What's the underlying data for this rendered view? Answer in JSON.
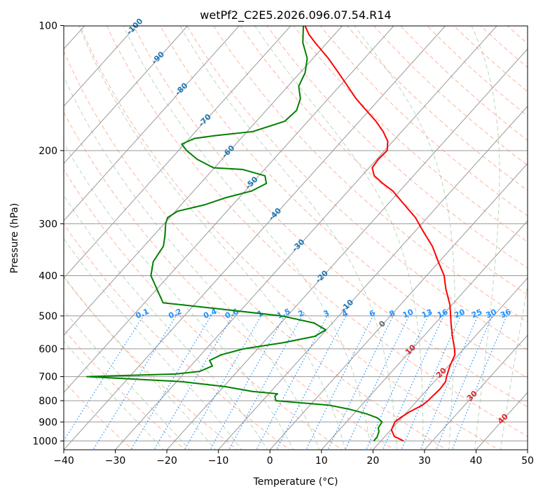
{
  "chart_data": {
    "type": "line",
    "subtype": "skew-T log-P diagram",
    "title": "wetPf2_C2E5.2026.096.07.54.R14",
    "xlabel": "Temperature (°C)",
    "ylabel": "Pressure (hPa)",
    "xlim": [
      -40,
      50
    ],
    "ylim": [
      1050,
      100
    ],
    "x_ticks": [
      -40,
      -30,
      -20,
      -10,
      0,
      10,
      20,
      30,
      40,
      50
    ],
    "y_ticks": [
      100,
      200,
      300,
      400,
      500,
      600,
      700,
      800,
      900,
      1000
    ],
    "grid": true,
    "series": [
      {
        "name": "Temperature",
        "color": "#ff0000",
        "points": [
          {
            "p": 1000,
            "t": 24.4
          },
          {
            "p": 975,
            "t": 21.8
          },
          {
            "p": 940,
            "t": 20.1
          },
          {
            "p": 900,
            "t": 19.4
          },
          {
            "p": 880,
            "t": 19.7
          },
          {
            "p": 850,
            "t": 20.5
          },
          {
            "p": 820,
            "t": 21.8
          },
          {
            "p": 800,
            "t": 22.1
          },
          {
            "p": 780,
            "t": 22.2
          },
          {
            "p": 750,
            "t": 22.4
          },
          {
            "p": 720,
            "t": 22.2
          },
          {
            "p": 700,
            "t": 21.5
          },
          {
            "p": 660,
            "t": 20.3
          },
          {
            "p": 620,
            "t": 19.3
          },
          {
            "p": 600,
            "t": 18.2
          },
          {
            "p": 560,
            "t": 15.6
          },
          {
            "p": 520,
            "t": 13.0
          },
          {
            "p": 500,
            "t": 11.7
          },
          {
            "p": 470,
            "t": 9.6
          },
          {
            "p": 430,
            "t": 6.0
          },
          {
            "p": 400,
            "t": 3.4
          },
          {
            "p": 370,
            "t": -0.2
          },
          {
            "p": 340,
            "t": -4.0
          },
          {
            "p": 310,
            "t": -8.9
          },
          {
            "p": 290,
            "t": -12.3
          },
          {
            "p": 270,
            "t": -16.7
          },
          {
            "p": 250,
            "t": -21.4
          },
          {
            "p": 240,
            "t": -24.6
          },
          {
            "p": 230,
            "t": -27.6
          },
          {
            "p": 220,
            "t": -29.4
          },
          {
            "p": 210,
            "t": -29.7
          },
          {
            "p": 200,
            "t": -29.5
          },
          {
            "p": 190,
            "t": -31.0
          },
          {
            "p": 180,
            "t": -33.6
          },
          {
            "p": 170,
            "t": -36.8
          },
          {
            "p": 160,
            "t": -40.6
          },
          {
            "p": 150,
            "t": -44.6
          },
          {
            "p": 140,
            "t": -48.4
          },
          {
            "p": 130,
            "t": -52.5
          },
          {
            "p": 120,
            "t": -57.0
          },
          {
            "p": 110,
            "t": -62.3
          },
          {
            "p": 105,
            "t": -65.0
          },
          {
            "p": 100,
            "t": -67.3
          }
        ]
      },
      {
        "name": "Dewpoint",
        "color": "#008000",
        "points": [
          {
            "p": 1000,
            "t": 18.6
          },
          {
            "p": 980,
            "t": 18.6
          },
          {
            "p": 950,
            "t": 18.0
          },
          {
            "p": 930,
            "t": 17.2
          },
          {
            "p": 900,
            "t": 16.9
          },
          {
            "p": 880,
            "t": 15.3
          },
          {
            "p": 860,
            "t": 12.4
          },
          {
            "p": 840,
            "t": 8.6
          },
          {
            "p": 820,
            "t": 3.7
          },
          {
            "p": 800,
            "t": -7.4
          },
          {
            "p": 780,
            "t": -8.4
          },
          {
            "p": 770,
            "t": -8.3
          },
          {
            "p": 760,
            "t": -13.6
          },
          {
            "p": 740,
            "t": -19.7
          },
          {
            "p": 720,
            "t": -28.9
          },
          {
            "p": 710,
            "t": -38.4
          },
          {
            "p": 700,
            "t": -48.3
          },
          {
            "p": 690,
            "t": -31.6
          },
          {
            "p": 680,
            "t": -27.3
          },
          {
            "p": 660,
            "t": -25.8
          },
          {
            "p": 640,
            "t": -27.3
          },
          {
            "p": 620,
            "t": -26.0
          },
          {
            "p": 600,
            "t": -22.7
          },
          {
            "p": 580,
            "t": -16.1
          },
          {
            "p": 560,
            "t": -11.1
          },
          {
            "p": 540,
            "t": -10.1
          },
          {
            "p": 520,
            "t": -13.6
          },
          {
            "p": 500,
            "t": -21.1
          },
          {
            "p": 480,
            "t": -35.2
          },
          {
            "p": 465,
            "t": -46.4
          },
          {
            "p": 400,
            "t": -53.5
          },
          {
            "p": 370,
            "t": -55.5
          },
          {
            "p": 340,
            "t": -56.2
          },
          {
            "p": 320,
            "t": -57.8
          },
          {
            "p": 300,
            "t": -59.7
          },
          {
            "p": 290,
            "t": -60.4
          },
          {
            "p": 280,
            "t": -59.6
          },
          {
            "p": 270,
            "t": -55.4
          },
          {
            "p": 260,
            "t": -52.7
          },
          {
            "p": 250,
            "t": -48.7
          },
          {
            "p": 240,
            "t": -47.2
          },
          {
            "p": 230,
            "t": -48.8
          },
          {
            "p": 222,
            "t": -54.3
          },
          {
            "p": 220,
            "t": -60.2
          },
          {
            "p": 210,
            "t": -64.8
          },
          {
            "p": 200,
            "t": -68.4
          },
          {
            "p": 193,
            "t": -70.5
          },
          {
            "p": 187,
            "t": -69.0
          },
          {
            "p": 184,
            "t": -65.4
          },
          {
            "p": 180,
            "t": -58.9
          },
          {
            "p": 170,
            "t": -54.5
          },
          {
            "p": 160,
            "t": -54.1
          },
          {
            "p": 150,
            "t": -55.4
          },
          {
            "p": 140,
            "t": -57.9
          },
          {
            "p": 130,
            "t": -59.0
          },
          {
            "p": 120,
            "t": -61.1
          },
          {
            "p": 110,
            "t": -64.7
          },
          {
            "p": 100,
            "t": -67.6
          }
        ]
      }
    ],
    "mixing_ratio_labels_gkg": [
      "0.1",
      "0.2",
      "0.4",
      "0.6",
      "1",
      "1.5",
      "2",
      "3",
      "4",
      "6",
      "8",
      "10",
      "13",
      "16",
      "20",
      "25",
      "30",
      "36"
    ],
    "isotherm_labels_c": [
      "-100",
      "-90",
      "-80",
      "-70",
      "-60",
      "-50",
      "-40",
      "-30",
      "-20",
      "-10",
      "0",
      "10",
      "20",
      "30",
      "40"
    ],
    "colors": {
      "isotherm": "#999999",
      "dry_adiabat": "#ff8c69",
      "moist_adiabat": "#8fbc8f",
      "mixing_ratio": "#1e90ff",
      "isotherm_label": "#1f77b4",
      "isotherm_label_warm": "#d62728",
      "zero_label": "#666666"
    }
  }
}
